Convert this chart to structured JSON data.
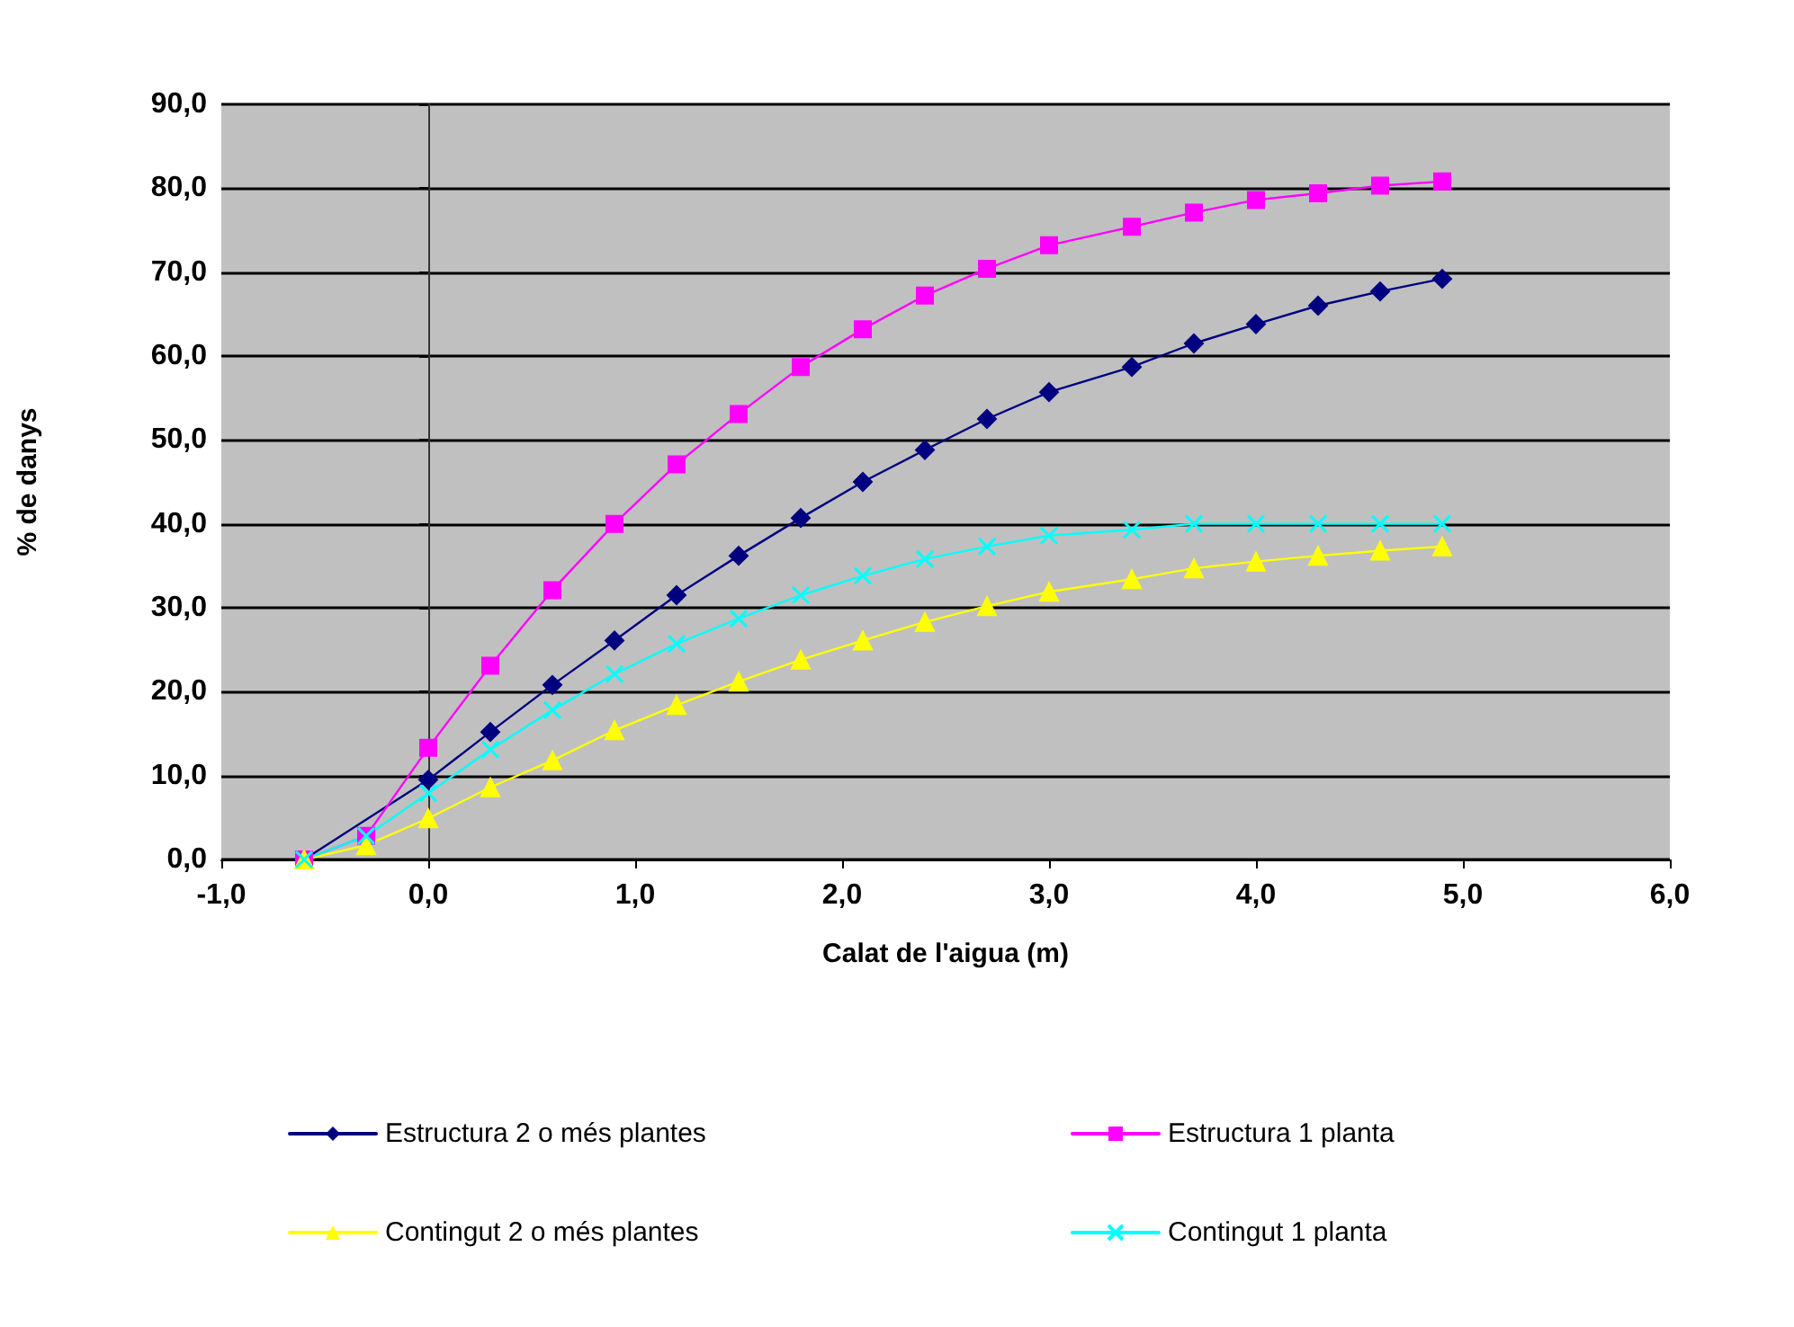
{
  "chart_data": {
    "type": "line",
    "xlabel": "Calat de l'aigua (m)",
    "ylabel": "% de danys",
    "x": [
      -0.6,
      -0.3,
      0,
      0.3,
      0.6,
      0.9,
      1.2,
      1.5,
      1.8,
      2.1,
      2.4,
      2.7,
      3.0,
      3.4,
      3.7,
      4.0,
      4.3,
      4.6,
      4.9
    ],
    "series": [
      {
        "name": "Estructura 2 o més plantes",
        "color": "#000080",
        "marker": "diamond",
        "values": [
          0,
          null,
          9.5,
          15.2,
          20.8,
          26.1,
          31.5,
          36.2,
          40.7,
          45.0,
          48.8,
          52.5,
          55.7,
          58.7,
          61.5,
          63.8,
          66.0,
          67.7,
          69.2
        ]
      },
      {
        "name": "Estructura 1 planta",
        "color": "#ff00ff",
        "marker": "square",
        "values": [
          0,
          2.8,
          13.3,
          23.1,
          32.1,
          40.0,
          47.1,
          53.1,
          58.7,
          63.2,
          67.2,
          70.4,
          73.2,
          75.4,
          77.1,
          78.6,
          79.4,
          80.3,
          80.8
        ]
      },
      {
        "name": "Contingut 2 o més plantes",
        "color": "#ffff00",
        "marker": "triangle",
        "values": [
          0,
          1.7,
          4.9,
          8.6,
          11.8,
          15.4,
          18.4,
          21.2,
          23.8,
          26.1,
          28.3,
          30.2,
          31.9,
          33.4,
          34.7,
          35.5,
          36.2,
          36.8,
          37.3
        ]
      },
      {
        "name": "Contingut 1 planta",
        "color": "#00ffff",
        "marker": "cross",
        "values": [
          0,
          2.8,
          7.9,
          13.1,
          17.8,
          22.1,
          25.7,
          28.7,
          31.5,
          33.8,
          35.8,
          37.3,
          38.6,
          39.3,
          40.0,
          40.0,
          40.0,
          40.0,
          40.0
        ]
      }
    ],
    "xlim": [
      -1,
      6
    ],
    "xticks": [
      {
        "value": -1,
        "label": "-1,0"
      },
      {
        "value": 0,
        "label": "0,0"
      },
      {
        "value": 1,
        "label": "1,0"
      },
      {
        "value": 2,
        "label": "2,0"
      },
      {
        "value": 3,
        "label": "3,0"
      },
      {
        "value": 4,
        "label": "4,0"
      },
      {
        "value": 5,
        "label": "5,0"
      },
      {
        "value": 6,
        "label": "6,0"
      }
    ],
    "ylim": [
      0,
      90
    ],
    "yticks": [
      {
        "value": 0,
        "label": "0,0"
      },
      {
        "value": 10,
        "label": "10,0"
      },
      {
        "value": 20,
        "label": "20,0"
      },
      {
        "value": 30,
        "label": "30,0"
      },
      {
        "value": 40,
        "label": "40,0"
      },
      {
        "value": 50,
        "label": "50,0"
      },
      {
        "value": 60,
        "label": "60,0"
      },
      {
        "value": 70,
        "label": "70,0"
      },
      {
        "value": 80,
        "label": "80,0"
      },
      {
        "value": 90,
        "label": "90,0"
      }
    ],
    "grid": "y",
    "legend": "bottom",
    "line_style": "solid"
  }
}
